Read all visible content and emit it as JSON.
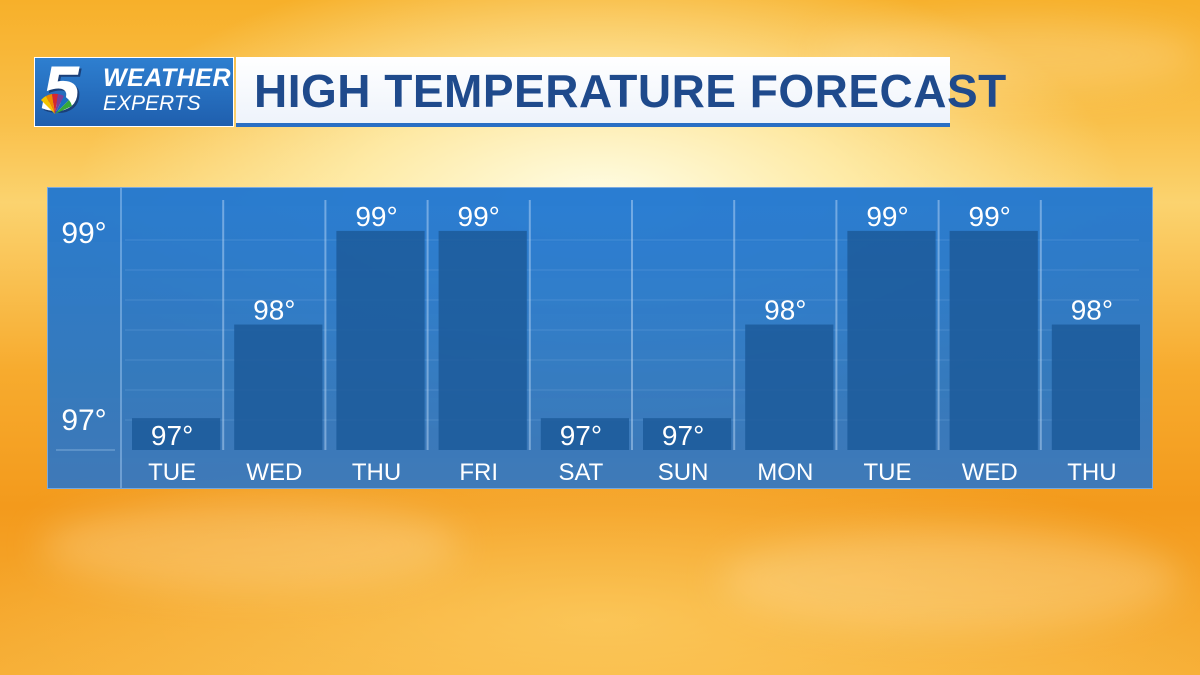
{
  "logo": {
    "number": "5",
    "line1": "WEATHER",
    "line2": "EXPERTS"
  },
  "title": "HIGH TEMPERATURE FORECAST",
  "chart_data": {
    "type": "bar",
    "title": "HIGH TEMPERATURE FORECAST",
    "xlabel": "",
    "ylabel": "",
    "categories": [
      "TUE",
      "WED",
      "THU",
      "FRI",
      "SAT",
      "SUN",
      "MON",
      "TUE",
      "WED",
      "THU"
    ],
    "values": [
      97,
      98,
      99,
      99,
      97,
      97,
      98,
      99,
      99,
      98
    ],
    "value_labels": [
      "97°",
      "98°",
      "99°",
      "99°",
      "97°",
      "97°",
      "98°",
      "99°",
      "99°",
      "98°"
    ],
    "y_ticks": [
      {
        "value": 99,
        "label": "99°"
      },
      {
        "value": 97,
        "label": "97°"
      }
    ],
    "ylim": [
      96.66,
      99.33
    ],
    "grid": true,
    "colors": {
      "bar": "#1c5a9a",
      "panel": "#2374cc",
      "text": "#ffffff"
    }
  }
}
